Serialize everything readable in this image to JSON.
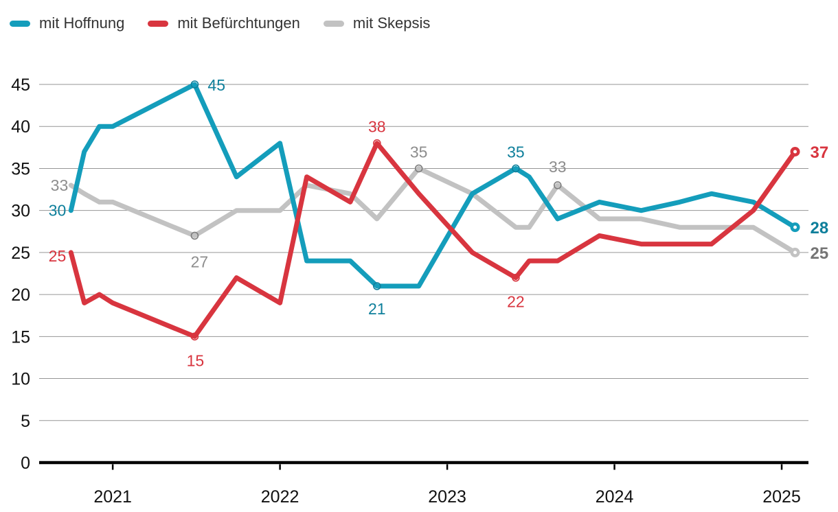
{
  "chart_data": {
    "type": "line",
    "title": "",
    "legend_position": "top-left",
    "grid": true,
    "x_axis": {
      "range": [
        2020.56,
        2025.16
      ],
      "ticks": [
        2021,
        2022,
        2023,
        2024,
        2025
      ],
      "labels": [
        "2021",
        "2022",
        "2023",
        "2024",
        "2025"
      ]
    },
    "y_axis": {
      "range": [
        0,
        45
      ],
      "ticks": [
        0,
        5,
        10,
        15,
        20,
        25,
        30,
        35,
        40,
        45
      ]
    },
    "colors": {
      "gridline": "#969696",
      "axis_line": "#000000",
      "axis_text": "#111111",
      "legend_text": "#333333",
      "background": "#ffffff"
    },
    "draw_order": [
      2,
      0,
      1
    ],
    "series": [
      {
        "name": "mit Hoffnung",
        "color": "#149DBB",
        "label_color": "#0E7F9B",
        "ring_color": "#0E7F9B",
        "end_label_color": "#0E7F9B",
        "x": [
          2020.75,
          2020.83,
          2020.92,
          2021.0,
          2021.49,
          2021.74,
          2022.0,
          2022.16,
          2022.42,
          2022.58,
          2022.83,
          2023.15,
          2023.41,
          2023.49,
          2023.66,
          2023.91,
          2024.16,
          2024.39,
          2024.58,
          2024.83,
          2025.08
        ],
        "values": [
          30,
          37,
          40,
          40,
          45,
          34,
          38,
          24,
          24,
          21,
          21,
          32,
          35,
          34,
          29,
          31,
          30,
          31,
          32,
          31,
          28
        ],
        "annotations": [
          {
            "text": "30",
            "x": 2020.75,
            "value": 30,
            "anchor": "end",
            "dx": -7,
            "dy": 8
          },
          {
            "text": "45",
            "x": 2021.49,
            "value": 45,
            "anchor": "start",
            "dx": 19,
            "dy": 9,
            "ring": true
          },
          {
            "text": "21",
            "x": 2022.58,
            "value": 21,
            "anchor": "middle",
            "dx": 0,
            "dy": 41,
            "ring": true
          },
          {
            "text": "35",
            "x": 2023.41,
            "value": 35,
            "anchor": "middle",
            "dx": 0,
            "dy": -16,
            "ring": true
          },
          {
            "text": "28",
            "x": 2025.08,
            "value": 28,
            "anchor": "start",
            "dx": 22,
            "dy": 9,
            "end_dot": true,
            "bold": true
          }
        ]
      },
      {
        "name": "mit Befürchtungen",
        "color": "#D8353F",
        "label_color": "#D8353F",
        "ring_color": "#D8353F",
        "end_label_color": "#D8353F",
        "x": [
          2020.75,
          2020.83,
          2020.92,
          2021.0,
          2021.49,
          2021.74,
          2022.0,
          2022.16,
          2022.42,
          2022.58,
          2022.83,
          2023.15,
          2023.41,
          2023.49,
          2023.66,
          2023.91,
          2024.16,
          2024.39,
          2024.58,
          2024.83,
          2025.08
        ],
        "values": [
          25,
          19,
          20,
          19,
          15,
          22,
          19,
          34,
          31,
          38,
          32,
          25,
          22,
          24,
          24,
          27,
          26,
          26,
          26,
          30,
          37
        ],
        "annotations": [
          {
            "text": "25",
            "x": 2020.75,
            "value": 25,
            "anchor": "end",
            "dx": -7,
            "dy": 13
          },
          {
            "text": "15",
            "x": 2021.49,
            "value": 15,
            "anchor": "middle",
            "dx": 1,
            "dy": 43,
            "ring": true
          },
          {
            "text": "38",
            "x": 2022.58,
            "value": 38,
            "anchor": "middle",
            "dx": 0,
            "dy": -16,
            "ring": true
          },
          {
            "text": "22",
            "x": 2023.41,
            "value": 22,
            "anchor": "middle",
            "dx": 0,
            "dy": 43,
            "ring": true
          },
          {
            "text": "37",
            "x": 2025.08,
            "value": 37,
            "anchor": "start",
            "dx": 22,
            "dy": 9,
            "end_dot": true,
            "bold": true
          }
        ]
      },
      {
        "name": "mit Skepsis",
        "color": "#C2C2C2",
        "label_color": "#8D8D8D",
        "ring_color": "#7E7E7E",
        "end_label_color": "#757575",
        "x": [
          2020.75,
          2020.83,
          2020.92,
          2021.0,
          2021.49,
          2021.74,
          2022.0,
          2022.16,
          2022.42,
          2022.58,
          2022.83,
          2023.15,
          2023.41,
          2023.49,
          2023.66,
          2023.91,
          2024.16,
          2024.39,
          2024.58,
          2024.83,
          2025.08
        ],
        "values": [
          33,
          32,
          31,
          31,
          27,
          30,
          30,
          33,
          32,
          29,
          35,
          32,
          28,
          28,
          33,
          29,
          29,
          28,
          28,
          28,
          25
        ],
        "annotations": [
          {
            "text": "33",
            "x": 2020.75,
            "value": 33,
            "anchor": "end",
            "dx": -4,
            "dy": 8
          },
          {
            "text": "27",
            "x": 2021.49,
            "value": 27,
            "anchor": "middle",
            "dx": 7,
            "dy": 46,
            "ring": true
          },
          {
            "text": "35",
            "x": 2022.83,
            "value": 35,
            "anchor": "middle",
            "dx": 0,
            "dy": -16,
            "ring": true
          },
          {
            "text": "33",
            "x": 2023.66,
            "value": 33,
            "anchor": "middle",
            "dx": 0,
            "dy": -19,
            "ring": true
          },
          {
            "text": "25",
            "x": 2025.08,
            "value": 25,
            "anchor": "start",
            "dx": 22,
            "dy": 9,
            "end_dot": true,
            "bold": true
          }
        ]
      }
    ]
  }
}
